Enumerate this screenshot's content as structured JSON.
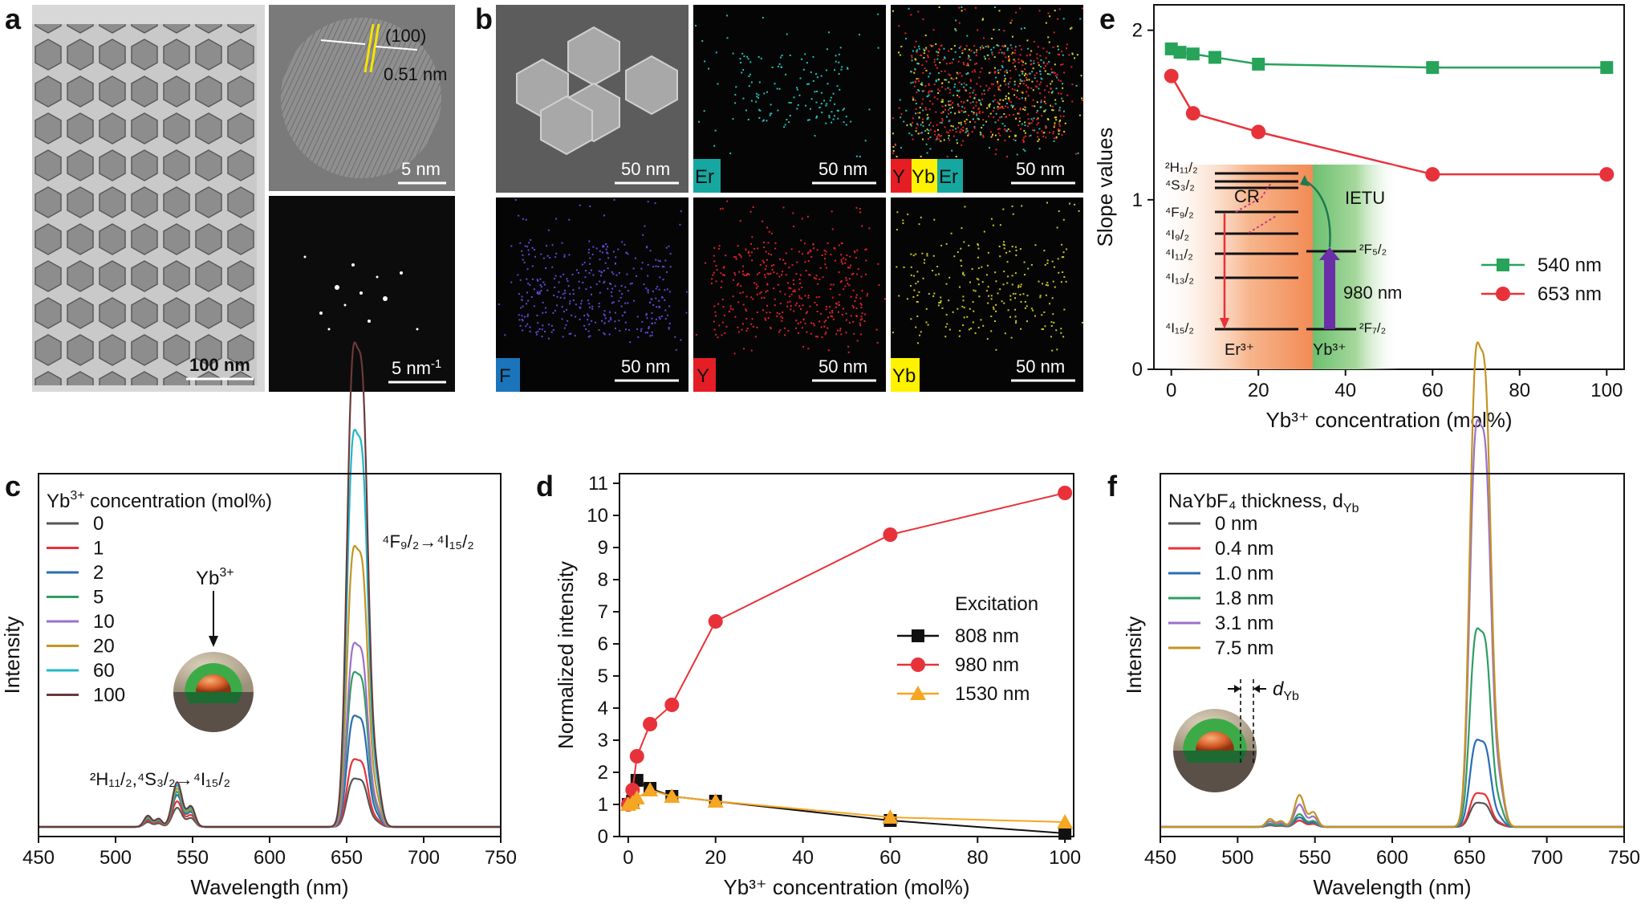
{
  "panel_labels": {
    "a": "a",
    "b": "b",
    "c": "c",
    "d": "d",
    "e": "e",
    "f": "f"
  },
  "panel_a": {
    "tem_scale": "100 nm",
    "hrtem_scale": "5 nm",
    "lattice_plane": "(100)",
    "lattice_spacing": "0.51 nm",
    "fft_scale": "5 nm",
    "fft_scale_sup": "-1"
  },
  "panel_b": {
    "scale": "50 nm",
    "tags": {
      "er": "Er",
      "y": "Y",
      "yb": "Yb",
      "f": "F"
    },
    "tile_colors": {
      "er": "#16a7a0",
      "y": "#e51e25",
      "yb": "#fff200",
      "f": "#1b75bb"
    }
  },
  "panel_c": {
    "legend_title": "Yb",
    "legend_title_sup": "3+",
    "legend_title_rest": " concentration (mol%)",
    "inset_label": "Yb",
    "inset_label_sup": "3+",
    "peak_label_left": "²H₁₁/₂,⁴S₃/₂→⁴I₁₅/₂",
    "peak_label_right": "⁴F₉/₂→⁴I₁₅/₂"
  },
  "panel_d": {
    "legend_title": "Excitation"
  },
  "panel_e": {
    "levels": [
      "²H₁₁/₂",
      "⁴S₃/₂",
      "⁴F₉/₂",
      "⁴I₉/₂",
      "⁴I₁₁/₂",
      "⁴I₁₃/₂",
      "⁴I₁₅/₂"
    ],
    "yb_levels": [
      "²F₅/₂",
      "²F₇/₂"
    ],
    "cr_label": "CR",
    "ietu_label": "IETU",
    "pump_label": "980 nm",
    "er_ion": "Er³⁺",
    "yb_ion": "Yb³⁺"
  },
  "panel_f": {
    "legend_title": "NaYbF₄ thickness, d",
    "legend_title_sub": "Yb",
    "inset_label": "d",
    "inset_label_sub": "Yb"
  },
  "chart_data": [
    {
      "id": "c",
      "type": "line",
      "xlabel": "Wavelength (nm)",
      "ylabel": "Intensity",
      "xlim": [
        450,
        750
      ],
      "xticks": [
        450,
        500,
        550,
        600,
        650,
        700,
        750
      ],
      "series": [
        {
          "name": "0",
          "color": "#555555",
          "peak_green": 0.06,
          "peak_red": 0.1
        },
        {
          "name": "1",
          "color": "#e8323a",
          "peak_green": 0.08,
          "peak_red": 0.14
        },
        {
          "name": "2",
          "color": "#2b6cb6",
          "peak_green": 0.1,
          "peak_red": 0.23
        },
        {
          "name": "5",
          "color": "#2e9e62",
          "peak_green": 0.11,
          "peak_red": 0.32
        },
        {
          "name": "10",
          "color": "#9b71c9",
          "peak_green": 0.13,
          "peak_red": 0.38
        },
        {
          "name": "20",
          "color": "#c49422",
          "peak_green": 0.12,
          "peak_red": 0.58
        },
        {
          "name": "60",
          "color": "#22b7c9",
          "peak_green": 0.13,
          "peak_red": 0.82
        },
        {
          "name": "100",
          "color": "#6b3a3a",
          "peak_green": 0.14,
          "peak_red": 1.0
        }
      ]
    },
    {
      "id": "d",
      "type": "line",
      "xlabel": "Yb³⁺ concentration (mol%)",
      "ylabel": "Normalized intensity",
      "xlim": [
        -2,
        102
      ],
      "ylim": [
        0,
        11.3
      ],
      "xticks": [
        0,
        20,
        40,
        60,
        80,
        100
      ],
      "yticks": [
        0,
        1,
        2,
        3,
        4,
        5,
        6,
        7,
        8,
        9,
        10,
        11
      ],
      "series": [
        {
          "name": "808 nm",
          "color": "#111111",
          "marker": "square",
          "x": [
            0,
            1,
            2,
            5,
            10,
            20,
            60,
            100
          ],
          "y": [
            1.0,
            1.1,
            1.75,
            1.5,
            1.25,
            1.1,
            0.5,
            0.1
          ]
        },
        {
          "name": "980 nm",
          "color": "#e8323a",
          "marker": "circle",
          "x": [
            0,
            1,
            2,
            5,
            10,
            20,
            60,
            100
          ],
          "y": [
            1.0,
            1.45,
            2.5,
            3.5,
            4.1,
            6.7,
            9.4,
            10.7
          ]
        },
        {
          "name": "1530 nm",
          "color": "#f5a623",
          "marker": "triangle",
          "x": [
            0,
            1,
            2,
            5,
            10,
            20,
            60,
            100
          ],
          "y": [
            1.0,
            1.05,
            1.2,
            1.45,
            1.25,
            1.1,
            0.6,
            0.45
          ]
        }
      ]
    },
    {
      "id": "e",
      "type": "line",
      "xlabel": "Yb³⁺ concentration (mol%)",
      "ylabel": "Slope values",
      "xlim": [
        -4,
        104
      ],
      "ylim": [
        0,
        2.15
      ],
      "xticks": [
        0,
        20,
        40,
        60,
        80,
        100
      ],
      "yticks": [
        0,
        1,
        2
      ],
      "series": [
        {
          "name": "540 nm",
          "color": "#27a35a",
          "marker": "square",
          "x": [
            0,
            2,
            5,
            10,
            20,
            60,
            100
          ],
          "y": [
            1.89,
            1.87,
            1.86,
            1.84,
            1.8,
            1.78,
            1.78
          ]
        },
        {
          "name": "653 nm",
          "color": "#e8323a",
          "marker": "circle",
          "x": [
            0,
            5,
            20,
            60,
            100
          ],
          "y": [
            1.73,
            1.51,
            1.4,
            1.15,
            1.15
          ]
        }
      ]
    },
    {
      "id": "f",
      "type": "line",
      "xlabel": "Wavelength (nm)",
      "ylabel": "Intensity",
      "xlim": [
        450,
        750
      ],
      "xticks": [
        450,
        500,
        550,
        600,
        650,
        700,
        750
      ],
      "series": [
        {
          "name": "0 nm",
          "color": "#555555",
          "peak_green": 0.02,
          "peak_red": 0.05
        },
        {
          "name": "0.4 nm",
          "color": "#e8323a",
          "peak_green": 0.02,
          "peak_red": 0.07
        },
        {
          "name": "1.0 nm",
          "color": "#2b6cb6",
          "peak_green": 0.03,
          "peak_red": 0.18
        },
        {
          "name": "1.8 nm",
          "color": "#2e9e62",
          "peak_green": 0.04,
          "peak_red": 0.41
        },
        {
          "name": "3.1 nm",
          "color": "#9b71c9",
          "peak_green": 0.07,
          "peak_red": 0.84
        },
        {
          "name": "7.5 nm",
          "color": "#c49422",
          "peak_green": 0.1,
          "peak_red": 1.0
        }
      ]
    }
  ]
}
